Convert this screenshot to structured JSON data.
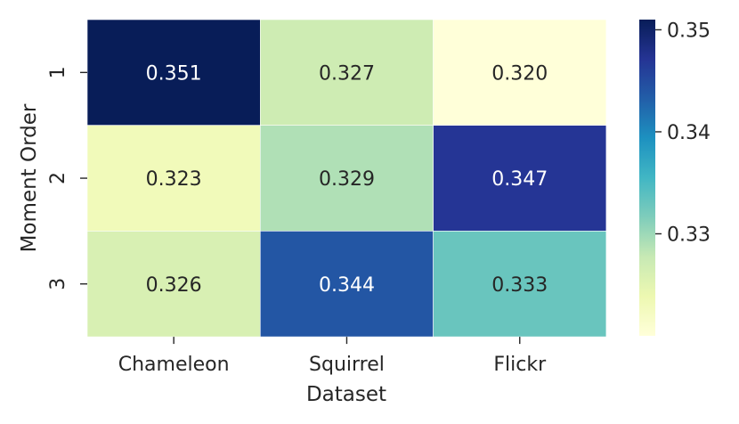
{
  "chart_data": {
    "type": "heatmap",
    "title": "",
    "xlabel": "Dataset",
    "ylabel": "Moment Order",
    "x_categories": [
      "Chameleon",
      "Squirrel",
      "Flickr"
    ],
    "y_categories": [
      "1",
      "2",
      "3"
    ],
    "values": [
      [
        0.351,
        0.327,
        0.32
      ],
      [
        0.323,
        0.329,
        0.347
      ],
      [
        0.326,
        0.344,
        0.333
      ]
    ],
    "cell_labels": [
      [
        "0.351",
        "0.327",
        "0.320"
      ],
      [
        "0.323",
        "0.329",
        "0.347"
      ],
      [
        "0.326",
        "0.344",
        "0.333"
      ]
    ],
    "colormap": "YlGnBu",
    "colorbar": {
      "vmin": 0.32,
      "vmax": 0.351,
      "ticks": [
        0.33,
        0.34,
        0.35
      ],
      "tick_labels": [
        "0.33",
        "0.34",
        "0.35"
      ]
    },
    "grid": false
  }
}
